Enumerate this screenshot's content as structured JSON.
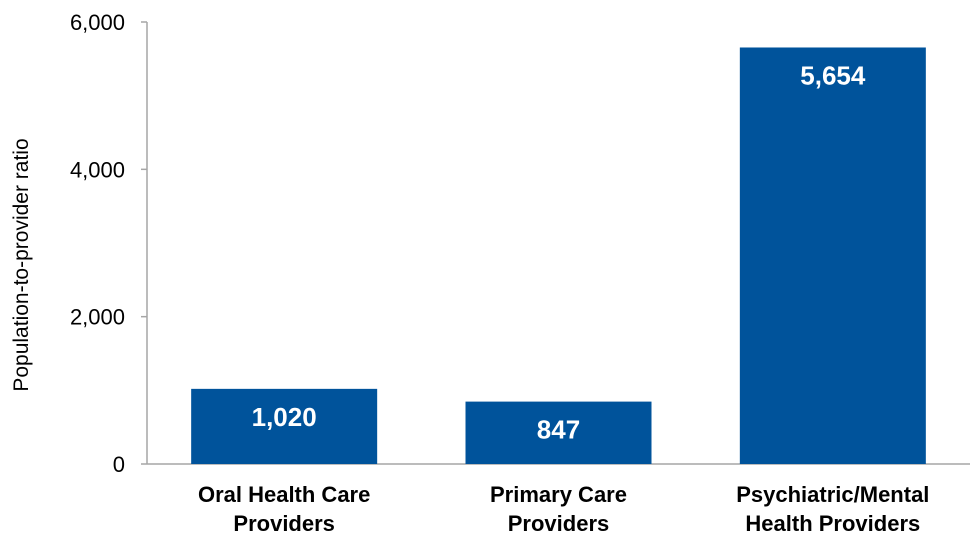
{
  "chart_data": {
    "type": "bar",
    "categories": [
      [
        "Oral Health Care",
        "Providers"
      ],
      [
        "Primary Care",
        "Providers"
      ],
      [
        "Psychiatric/Mental",
        "Health Providers"
      ]
    ],
    "values": [
      1020,
      847,
      5654
    ],
    "data_labels": [
      "1,020",
      "847",
      "5,654"
    ],
    "ylabel": "Population-to-provider ratio",
    "xlabel": "",
    "ylim": [
      0,
      6000
    ],
    "yticks": [
      0,
      2000,
      4000,
      6000
    ],
    "ytick_labels": [
      "0",
      "2,000",
      "4,000",
      "6,000"
    ],
    "grid": false,
    "legend": "none",
    "bar_color": "#00539b"
  }
}
